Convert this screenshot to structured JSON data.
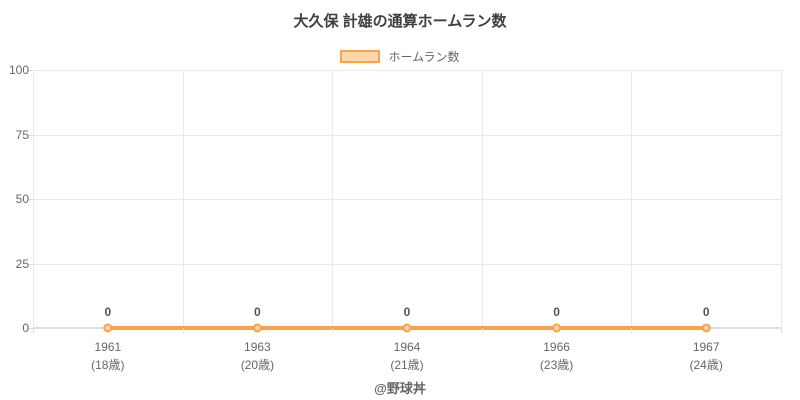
{
  "title": "大久保 計雄の通算ホームラン数",
  "legend": {
    "label": "ホームラン数"
  },
  "credit": "@野球丼",
  "colors": {
    "line": "#f9a14c",
    "point_fill": "#fcd5a5",
    "legend_fill": "#fbd7a9",
    "grid": "#e9e9e9",
    "axis": "#dedede",
    "tick_text": "#666666",
    "data_label_text": "#555555",
    "title_text": "#3f3f3f"
  },
  "chart_data": {
    "type": "line",
    "title": "大久保 計雄の通算ホームラン数",
    "categories": [
      "1961",
      "1963",
      "1964",
      "1966",
      "1967"
    ],
    "categories_sub": [
      "(18歳)",
      "(20歳)",
      "(21歳)",
      "(23歳)",
      "(24歳)"
    ],
    "series": [
      {
        "name": "ホームラン数",
        "values": [
          0,
          0,
          0,
          0,
          0
        ]
      }
    ],
    "data_labels": [
      "0",
      "0",
      "0",
      "0",
      "0"
    ],
    "yticks": [
      0,
      25,
      50,
      75,
      100
    ],
    "ylim": [
      0,
      100
    ],
    "xlabel": "",
    "ylabel": "",
    "grid": "on",
    "legend_position": "top"
  }
}
